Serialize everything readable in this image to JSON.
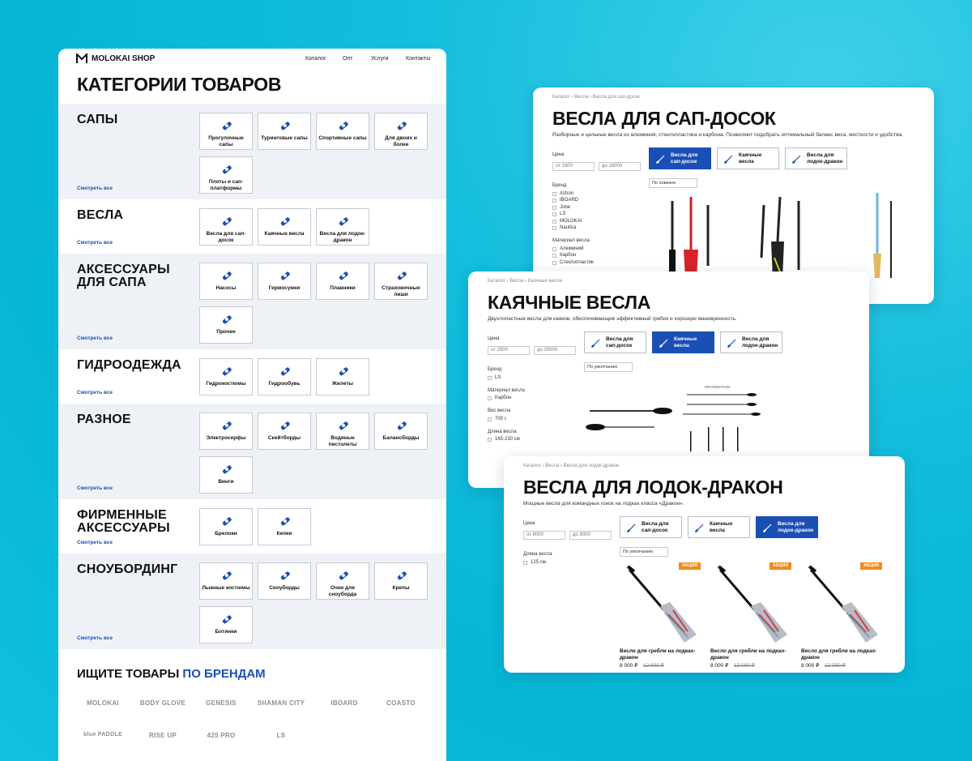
{
  "left": {
    "logo": "MOLOKAI SHOP",
    "nav": [
      "Каталог",
      "Опт",
      "Услуги",
      "Контакты"
    ],
    "title": "КАТЕГОРИИ ТОВАРОВ",
    "sections": [
      {
        "name": "САПЫ",
        "items": [
          "Прогулочные сапы",
          "Туринговые сапы",
          "Спортивные сапы",
          "Для двоих и более",
          "Плоты и сап-платформы"
        ],
        "see_all": "Смотреть все"
      },
      {
        "name": "ВЕСЛА",
        "items": [
          "Весла для сап-досок",
          "Каячные весла",
          "Весла для лодок-дракон"
        ],
        "see_all": "Смотреть все"
      },
      {
        "name": "АКСЕССУАРЫ ДЛЯ САПА",
        "items": [
          "Насосы",
          "Гермосумки",
          "Плавники",
          "Страховочные лиши",
          "Прочее"
        ],
        "see_all": "Смотреть все"
      },
      {
        "name": "ГИДРООДЕЖДА",
        "items": [
          "Гидрокостюмы",
          "Гидрообувь",
          "Жилеты"
        ],
        "see_all": "Смотреть все"
      },
      {
        "name": "РАЗНОЕ",
        "items": [
          "Электросерфы",
          "Скейтборды",
          "Водяные пистолеты",
          "Балансборды",
          "Винги"
        ],
        "see_all": "Смотреть все"
      },
      {
        "name": "ФИРМЕННЫЕ АКСЕССУАРЫ",
        "items": [
          "Брелоки",
          "Кепки"
        ],
        "see_all": "Смотреть все"
      },
      {
        "name": "СНОУБОРДИНГ",
        "items": [
          "Лыжные костюмы",
          "Сноуборды",
          "Очки для сноуборда",
          "Крепы",
          "Ботинки"
        ],
        "see_all": "Смотреть все"
      }
    ],
    "brands_title": "ИЩИТЕ ТОВАРЫ",
    "brands_highlight": "ПО БРЕНДАМ",
    "brands": [
      "MOLOKAI",
      "BODY GLOVE",
      "GENESIS",
      "SHAMAN CITY",
      "IBOARD",
      "COASTO",
      "blue PADDLE",
      "RISE UP",
      "425 PRO",
      "LS"
    ]
  },
  "cards": [
    {
      "breadcrumb": "Каталог › Весла › Весла для сап-досок",
      "title": "ВЕСЛА ДЛЯ САП-ДОСОК",
      "description": "Разборные и цельные весла из алюминия, стеклопластика и карбона. Позволяют подобрать оптимальный баланс веса, жесткости и удобства.",
      "price_label": "Цена",
      "price_from": "от 1600",
      "price_to": "до 16000",
      "tabs": [
        "Весла для сап-досок",
        "Каячные весла",
        "Весла для лодок-дракон"
      ],
      "active_tab": 0,
      "sort": "По новизне",
      "filters": [
        {
          "label": "Бренд",
          "options": [
            "Aztron",
            "IBOARD",
            "Jobe",
            "LS",
            "MOLOKAI",
            "Nautica"
          ]
        },
        {
          "label": "Материал весла",
          "options": [
            "Алюминий",
            "Карбон",
            "Стеклопластик"
          ]
        }
      ]
    },
    {
      "breadcrumb": "Каталог › Весла › Каячные весла",
      "title": "КАЯЧНЫЕ ВЕСЛА",
      "description": "Двухлопастные весла для каяков, обеспечивающие эффективный гребок и хорошую маневренность.",
      "price_label": "Цена",
      "price_from": "от 2500",
      "price_to": "до 20000",
      "tabs": [
        "Весла для сап-досок",
        "Каячные весла",
        "Весла для лодок-дракон"
      ],
      "active_tab": 1,
      "sort": "По умолчанию",
      "filters": [
        {
          "label": "Бренд",
          "options": [
            "LS"
          ]
        },
        {
          "label": "Материал весла",
          "options": [
            "Карбон"
          ]
        },
        {
          "label": "Вес весла",
          "options": [
            "700 г."
          ]
        },
        {
          "label": "Длина весла",
          "options": [
            "165-230 см"
          ]
        }
      ],
      "image_caption": "INFORMATION"
    },
    {
      "breadcrumb": "Каталог › Весла › Весла для лодок-дракон",
      "title": "ВЕСЛА ДЛЯ ЛОДОК-ДРАКОН",
      "description": "Мощные весла для командных гонок на лодках класса «Дракон».",
      "price_label": "Цена",
      "price_from": "от 8000",
      "price_to": "до 8000",
      "tabs": [
        "Весла для сап-досок",
        "Каячные весла",
        "Весла для лодок-дракон"
      ],
      "active_tab": 2,
      "sort": "По умолчанию",
      "filters": [
        {
          "label": "Длина весла",
          "options": [
            "125 см."
          ]
        }
      ],
      "products": [
        {
          "badge": "АКЦИЯ",
          "title": "Весло для гребли на лодках-дракон",
          "price": "8 000 ₽",
          "old_price": "12 000 ₽"
        },
        {
          "badge": "АКЦИЯ",
          "title": "Весло для гребли на лодках-дракон",
          "price": "8 000 ₽",
          "old_price": "12 000 ₽"
        },
        {
          "badge": "АКЦИЯ",
          "title": "Весло для гребли на лодках-дракон",
          "price": "8 000 ₽",
          "old_price": "12 000 ₽"
        }
      ]
    }
  ]
}
